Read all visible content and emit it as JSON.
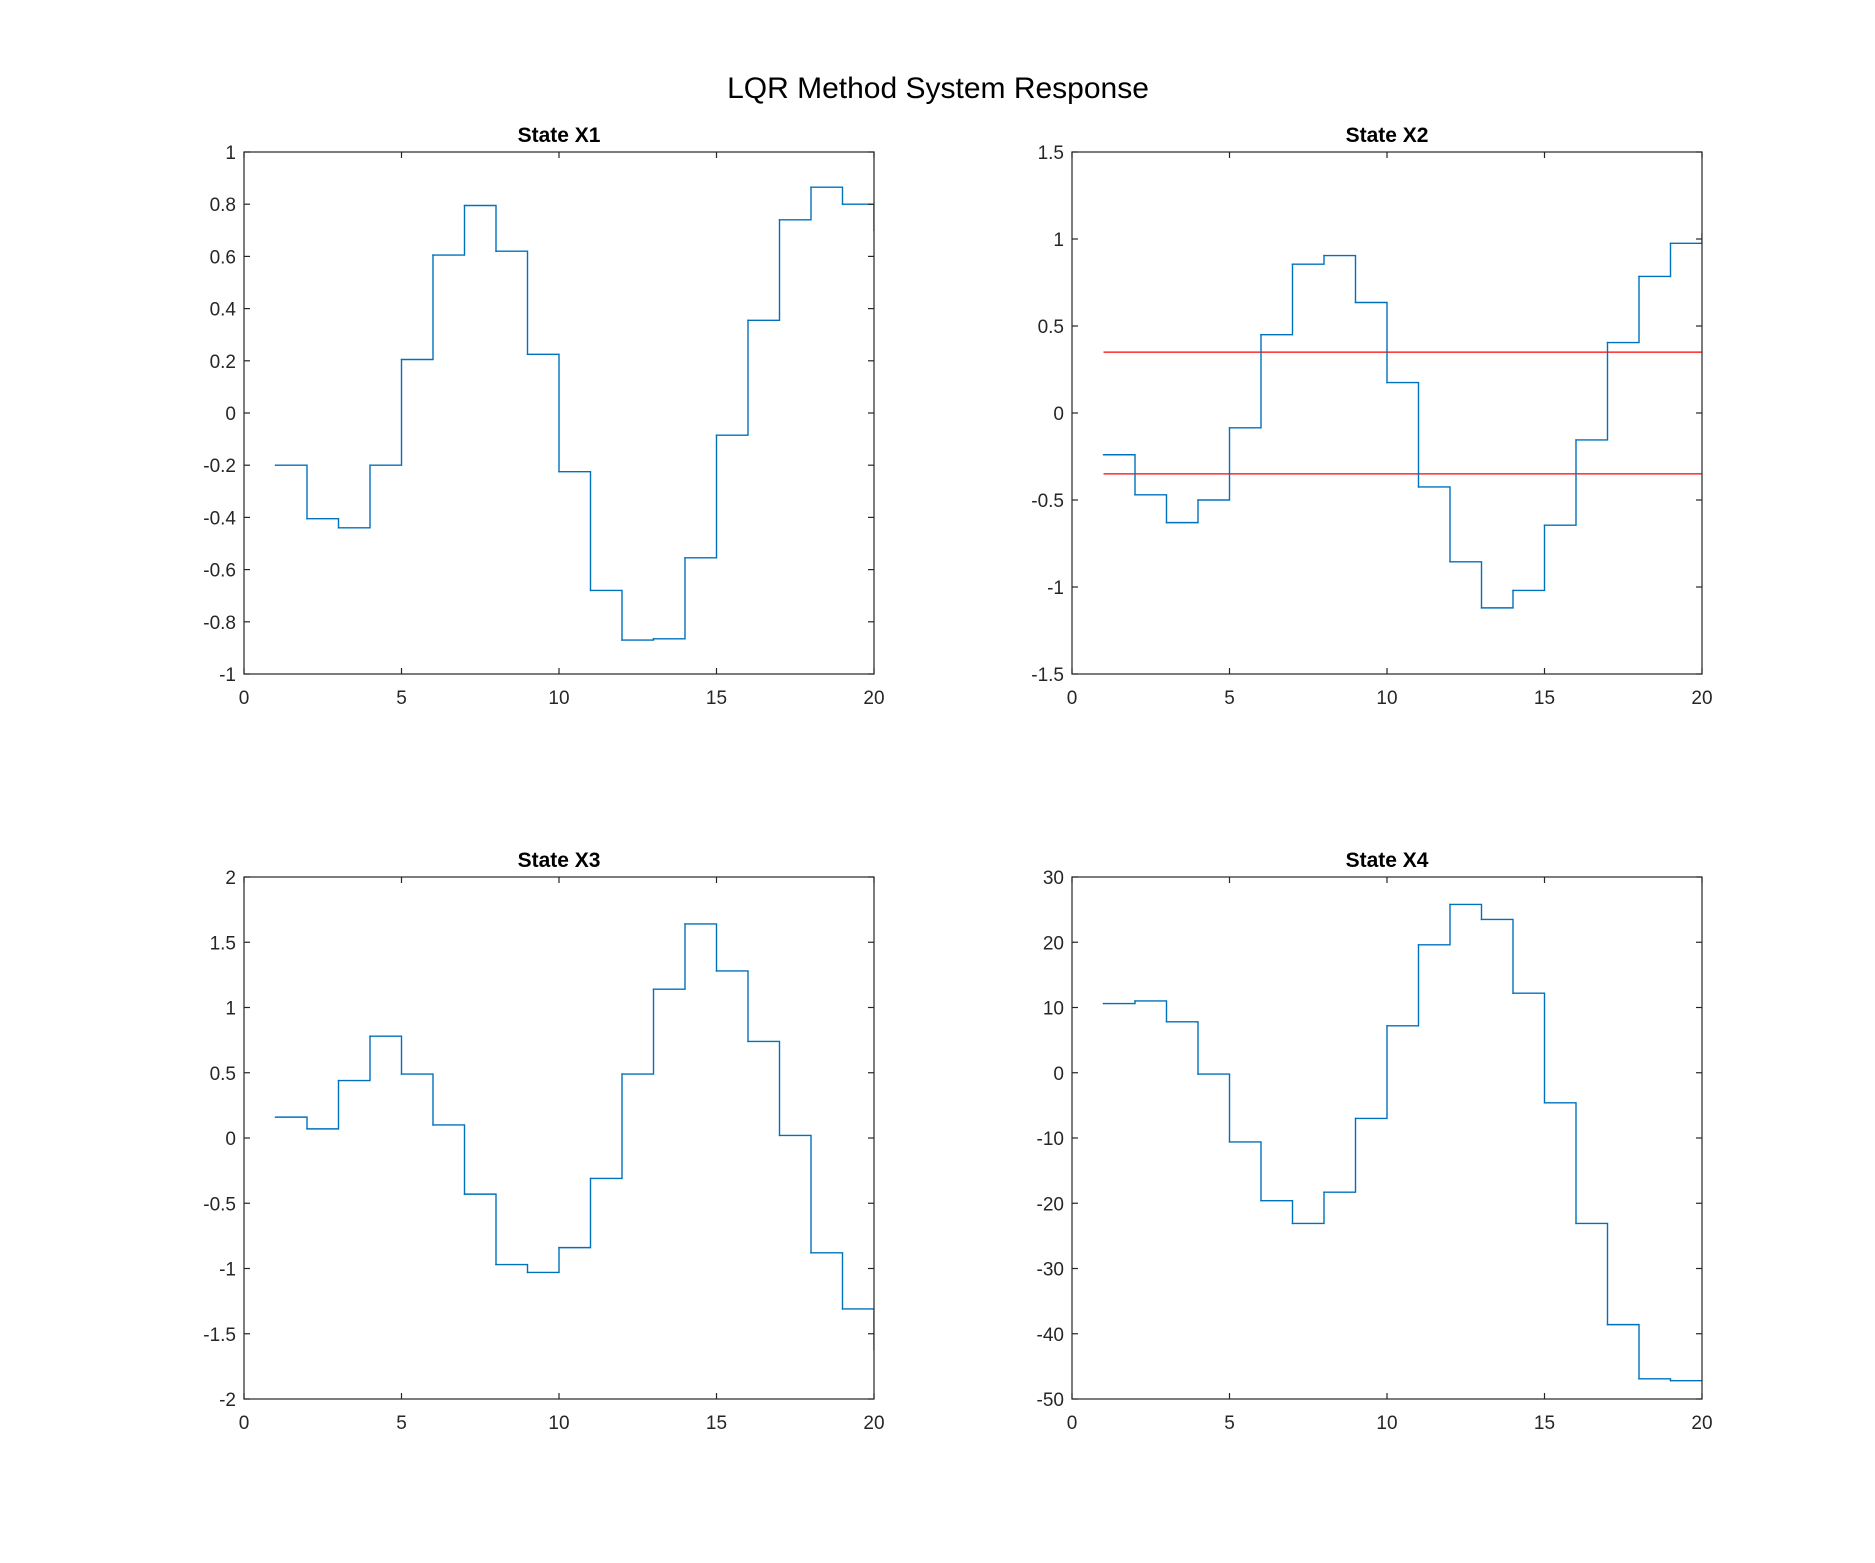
{
  "figure": {
    "title": "LQR Method System Response"
  },
  "colors": {
    "series": "#0072bd",
    "reference": "#ff0000",
    "axis": "#262626",
    "background": "#ffffff"
  },
  "chart_data": [
    {
      "type": "line",
      "step": true,
      "title": "State X1",
      "xlabel": "",
      "ylabel": "",
      "xlim": [
        0,
        20
      ],
      "ylim": [
        -1,
        1
      ],
      "xticks": [
        0,
        5,
        10,
        15,
        20
      ],
      "yticks": [
        -1,
        -0.8,
        -0.6,
        -0.4,
        -0.2,
        0,
        0.2,
        0.4,
        0.6,
        0.8,
        1
      ],
      "ytick_labels": [
        "-1",
        "-0.8",
        "-0.6",
        "-0.4",
        "-0.2",
        "0",
        "0.2",
        "0.4",
        "0.6",
        "0.8",
        "1"
      ],
      "grid": false,
      "series": [
        {
          "x": [
            1,
            2,
            3,
            4,
            5,
            6,
            7,
            8,
            9,
            10,
            11,
            12,
            13,
            14,
            15,
            16,
            17,
            18,
            19,
            20
          ],
          "y": [
            -0.2,
            -0.405,
            -0.44,
            -0.2,
            0.205,
            0.605,
            0.795,
            0.62,
            0.225,
            -0.225,
            -0.68,
            -0.87,
            -0.865,
            -0.555,
            -0.085,
            0.355,
            0.74,
            0.865,
            0.8,
            0.7
          ]
        }
      ],
      "reference_lines": []
    },
    {
      "type": "line",
      "step": true,
      "title": "State X2",
      "xlabel": "",
      "ylabel": "",
      "xlim": [
        0,
        20
      ],
      "ylim": [
        -1.5,
        1.5
      ],
      "xticks": [
        0,
        5,
        10,
        15,
        20
      ],
      "yticks": [
        -1.5,
        -1,
        -0.5,
        0,
        0.5,
        1,
        1.5
      ],
      "ytick_labels": [
        "-1.5",
        "-1",
        "-0.5",
        "0",
        "0.5",
        "1",
        "1.5"
      ],
      "grid": false,
      "series": [
        {
          "x": [
            1,
            2,
            3,
            4,
            5,
            6,
            7,
            8,
            9,
            10,
            11,
            12,
            13,
            14,
            15,
            16,
            17,
            18,
            19,
            20
          ],
          "y": [
            -0.24,
            -0.47,
            -0.63,
            -0.5,
            -0.085,
            0.45,
            0.855,
            0.905,
            0.635,
            0.175,
            -0.425,
            -0.855,
            -1.12,
            -1.02,
            -0.645,
            -0.155,
            0.405,
            0.785,
            0.975,
            1.03
          ]
        }
      ],
      "reference_lines": [
        {
          "y": 0.35,
          "x": [
            1,
            20
          ]
        },
        {
          "y": -0.35,
          "x": [
            1,
            20
          ]
        }
      ]
    },
    {
      "type": "line",
      "step": true,
      "title": "State X3",
      "xlabel": "",
      "ylabel": "",
      "xlim": [
        0,
        20
      ],
      "ylim": [
        -2,
        2
      ],
      "xticks": [
        0,
        5,
        10,
        15,
        20
      ],
      "yticks": [
        -2,
        -1.5,
        -1,
        -0.5,
        0,
        0.5,
        1,
        1.5,
        2
      ],
      "ytick_labels": [
        "-2",
        "-1.5",
        "-1",
        "-0.5",
        "0",
        "0.5",
        "1",
        "1.5",
        "2"
      ],
      "grid": false,
      "series": [
        {
          "x": [
            1,
            2,
            3,
            4,
            5,
            6,
            7,
            8,
            9,
            10,
            11,
            12,
            13,
            14,
            15,
            16,
            17,
            18,
            19,
            20
          ],
          "y": [
            0.16,
            0.07,
            0.44,
            0.78,
            0.49,
            0.1,
            -0.43,
            -0.97,
            -1.03,
            -0.84,
            -0.31,
            0.49,
            1.14,
            1.64,
            1.28,
            0.74,
            0.02,
            -0.88,
            -1.31,
            -1.62
          ]
        }
      ],
      "reference_lines": []
    },
    {
      "type": "line",
      "step": true,
      "title": "State X4",
      "xlabel": "",
      "ylabel": "",
      "xlim": [
        0,
        20
      ],
      "ylim": [
        -50,
        30
      ],
      "xticks": [
        0,
        5,
        10,
        15,
        20
      ],
      "yticks": [
        -50,
        -40,
        -30,
        -20,
        -10,
        0,
        10,
        20,
        30
      ],
      "ytick_labels": [
        "-50",
        "-40",
        "-30",
        "-20",
        "-10",
        "0",
        "10",
        "20",
        "30"
      ],
      "grid": false,
      "series": [
        {
          "x": [
            1,
            2,
            3,
            4,
            5,
            6,
            7,
            8,
            9,
            10,
            11,
            12,
            13,
            14,
            15,
            16,
            17,
            18,
            19,
            20
          ],
          "y": [
            10.6,
            11.0,
            7.8,
            -0.2,
            -10.6,
            -19.6,
            -23.1,
            -18.3,
            -7.0,
            7.2,
            19.6,
            25.8,
            23.5,
            12.2,
            -4.6,
            -23.1,
            -38.6,
            -46.9,
            -47.2,
            -47.2
          ]
        }
      ],
      "reference_lines": []
    }
  ]
}
